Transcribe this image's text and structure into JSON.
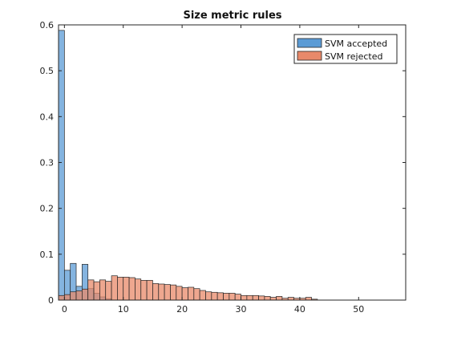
{
  "chart_data": {
    "type": "bar",
    "title": "Size metric rules",
    "xlabel": "",
    "ylabel": "",
    "xlim": [
      -1,
      58
    ],
    "ylim": [
      0,
      0.6
    ],
    "bin_width": 1,
    "x_ticks": [
      0,
      10,
      20,
      30,
      40,
      50
    ],
    "y_ticks": [
      0,
      0.1,
      0.2,
      0.3,
      0.4,
      0.5,
      0.6
    ],
    "y_tick_labels": [
      "0",
      "0.1",
      "0.2",
      "0.3",
      "0.4",
      "0.5",
      "0.6"
    ],
    "grid": false,
    "legend_position": "top-right",
    "series": [
      {
        "name": "SVM accepted",
        "color": "#5b9bd5",
        "x": [
          -1,
          0,
          1,
          2,
          3,
          4,
          5,
          6,
          7
        ],
        "values": [
          0.588,
          0.065,
          0.08,
          0.03,
          0.078,
          0.025,
          0.015,
          0.007,
          0.003
        ]
      },
      {
        "name": "SVM rejected",
        "color": "#e8896a",
        "x": [
          -1,
          0,
          1,
          2,
          3,
          4,
          5,
          6,
          7,
          8,
          9,
          10,
          11,
          12,
          13,
          14,
          15,
          16,
          17,
          18,
          19,
          20,
          21,
          22,
          23,
          24,
          25,
          26,
          27,
          28,
          29,
          30,
          31,
          32,
          33,
          34,
          35,
          36,
          37,
          38,
          39,
          40,
          41,
          42
        ],
        "values": [
          0.01,
          0.012,
          0.018,
          0.02,
          0.024,
          0.044,
          0.04,
          0.044,
          0.041,
          0.053,
          0.05,
          0.05,
          0.049,
          0.046,
          0.043,
          0.043,
          0.036,
          0.035,
          0.034,
          0.033,
          0.03,
          0.027,
          0.028,
          0.025,
          0.021,
          0.018,
          0.017,
          0.016,
          0.015,
          0.015,
          0.013,
          0.01,
          0.01,
          0.01,
          0.009,
          0.008,
          0.006,
          0.008,
          0.004,
          0.006,
          0.004,
          0.004,
          0.006,
          0.002
        ]
      }
    ]
  }
}
